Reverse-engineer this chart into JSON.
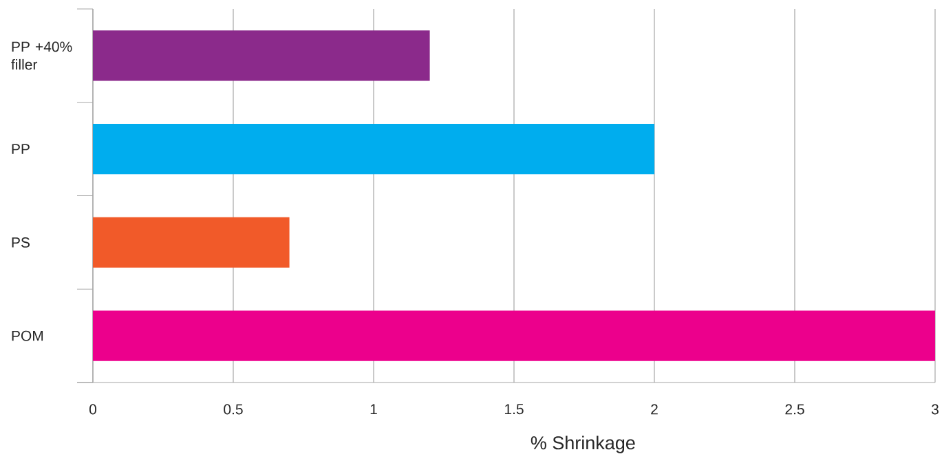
{
  "chart_data": {
    "type": "bar",
    "orientation": "horizontal",
    "categories": [
      "PP +40% filler",
      "PP",
      "PS",
      "POM"
    ],
    "values": [
      1.2,
      2.0,
      0.7,
      3.0
    ],
    "colors": [
      "#8b2a8b",
      "#00adee",
      "#f15a29",
      "#ec008c"
    ],
    "xlabel": "% Shrinkage",
    "xlim": [
      0,
      3
    ],
    "xticks": [
      0,
      0.5,
      1,
      1.5,
      2,
      2.5,
      3
    ],
    "grid": "x"
  }
}
